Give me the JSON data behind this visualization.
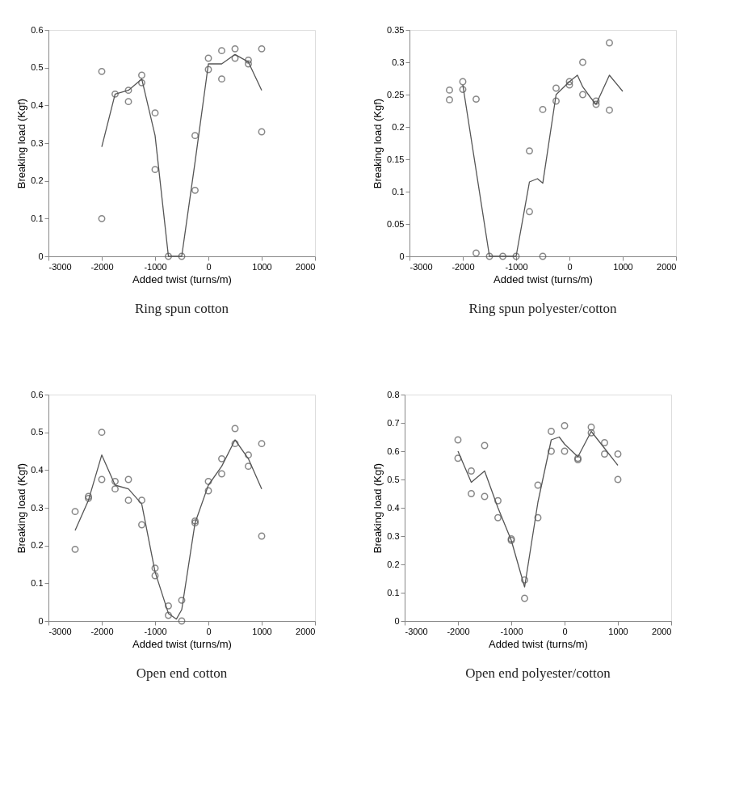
{
  "chart_data": [
    {
      "type": "scatter",
      "title": "Ring spun cotton",
      "xlabel": "Added twist (turns/m)",
      "ylabel": "Breaking load (Kgf)",
      "xlim": [
        -3000,
        2000
      ],
      "xticks": [
        -3000,
        -2000,
        -1000,
        0,
        1000,
        2000
      ],
      "ylim": [
        0,
        0.6
      ],
      "yticks": [
        0,
        0.1,
        0.2,
        0.3,
        0.4,
        0.5,
        0.6
      ],
      "grid": false,
      "series": [
        {
          "marker": "circle",
          "color": "#555555",
          "x": [
            -2000,
            -2000,
            -1750,
            -1500,
            -1500,
            -1250,
            -1250,
            -1000,
            -1000,
            -750,
            -500,
            -250,
            -250,
            0,
            0,
            250,
            250,
            500,
            500,
            750,
            750,
            1000,
            1000
          ],
          "values": [
            0.49,
            0.1,
            0.43,
            0.44,
            0.41,
            0.48,
            0.46,
            0.38,
            0.23,
            0,
            0,
            0.32,
            0.175,
            0.525,
            0.495,
            0.545,
            0.47,
            0.55,
            0.525,
            0.52,
            0.51,
            0.55,
            0.33
          ]
        },
        {
          "type": "line",
          "marker": "none",
          "color": "#555555",
          "x": [
            -2000,
            -1750,
            -1500,
            -1250,
            -1000,
            -750,
            -500,
            -250,
            0,
            250,
            500,
            750,
            1000
          ],
          "values": [
            0.29,
            0.43,
            0.44,
            0.47,
            0.32,
            0,
            0,
            0.25,
            0.51,
            0.51,
            0.535,
            0.515,
            0.44
          ]
        }
      ]
    },
    {
      "type": "scatter",
      "title": "Ring spun polyester/cotton",
      "xlabel": "Added twist (turns/m)",
      "ylabel": "Breaking load (Kgf)",
      "xlim": [
        -3000,
        2000
      ],
      "xticks": [
        -3000,
        -2000,
        -1000,
        0,
        1000,
        2000
      ],
      "ylim": [
        0,
        0.35
      ],
      "yticks": [
        0,
        0.05,
        0.1,
        0.15,
        0.2,
        0.25,
        0.3,
        0.35
      ],
      "grid": false,
      "series": [
        {
          "marker": "circle",
          "color": "#555555",
          "x": [
            -2250,
            -2250,
            -2000,
            -2000,
            -1750,
            -1750,
            -1500,
            -1250,
            -1000,
            -750,
            -750,
            -500,
            -500,
            -250,
            -250,
            0,
            0,
            250,
            250,
            500,
            500,
            750,
            750
          ],
          "values": [
            0.257,
            0.242,
            0.27,
            0.258,
            0.243,
            0.005,
            0,
            0,
            0,
            0.163,
            0.069,
            0.227,
            0,
            0.26,
            0.24,
            0.27,
            0.265,
            0.3,
            0.25,
            0.24,
            0.235,
            0.33,
            0.226
          ]
        },
        {
          "type": "line",
          "marker": "none",
          "color": "#555555",
          "x": [
            -2000,
            -1500,
            -1000,
            -750,
            -600,
            -500,
            -250,
            0,
            150,
            250,
            400,
            500,
            750,
            1000
          ],
          "values": [
            0.265,
            0,
            0,
            0.115,
            0.12,
            0.113,
            0.25,
            0.27,
            0.28,
            0.262,
            0.245,
            0.235,
            0.28,
            0.255
          ]
        }
      ]
    },
    {
      "type": "scatter",
      "title": "Open end cotton",
      "xlabel": "Added twist (turns/m)",
      "ylabel": "Breaking load (Kgf)",
      "xlim": [
        -3000,
        2000
      ],
      "xticks": [
        -3000,
        -2000,
        -1000,
        0,
        1000,
        2000
      ],
      "ylim": [
        0,
        0.6
      ],
      "yticks": [
        0,
        0.1,
        0.2,
        0.3,
        0.4,
        0.5,
        0.6
      ],
      "grid": false,
      "series": [
        {
          "marker": "circle",
          "color": "#555555",
          "x": [
            -2500,
            -2500,
            -2250,
            -2250,
            -2000,
            -2000,
            -1750,
            -1750,
            -1500,
            -1500,
            -1250,
            -1250,
            -1000,
            -1000,
            -750,
            -750,
            -500,
            -500,
            -250,
            -250,
            0,
            0,
            250,
            250,
            500,
            500,
            750,
            750,
            1000,
            1000
          ],
          "values": [
            0.29,
            0.19,
            0.33,
            0.325,
            0.5,
            0.375,
            0.37,
            0.35,
            0.375,
            0.32,
            0.32,
            0.255,
            0.14,
            0.12,
            0.04,
            0.015,
            0.055,
            0,
            0.265,
            0.26,
            0.37,
            0.345,
            0.43,
            0.39,
            0.51,
            0.47,
            0.44,
            0.41,
            0.47,
            0.225
          ]
        },
        {
          "type": "line",
          "marker": "none",
          "color": "#555555",
          "x": [
            -2500,
            -2250,
            -2000,
            -1750,
            -1500,
            -1250,
            -1000,
            -750,
            -600,
            -500,
            -250,
            0,
            250,
            500,
            750,
            1000
          ],
          "values": [
            0.24,
            0.32,
            0.44,
            0.36,
            0.35,
            0.31,
            0.13,
            0.02,
            0.005,
            0.03,
            0.26,
            0.36,
            0.41,
            0.48,
            0.43,
            0.35
          ]
        }
      ]
    },
    {
      "type": "scatter",
      "title": "Open end polyester/cotton",
      "xlabel": "Added twist (turns/m)",
      "ylabel": "Breaking load (Kgf)",
      "xlim": [
        -3000,
        2000
      ],
      "xticks": [
        -3000,
        -2000,
        -1000,
        0,
        1000,
        2000
      ],
      "ylim": [
        0,
        0.8
      ],
      "yticks": [
        0,
        0.1,
        0.2,
        0.3,
        0.4,
        0.5,
        0.6,
        0.7,
        0.8
      ],
      "grid": false,
      "series": [
        {
          "marker": "circle",
          "color": "#555555",
          "x": [
            -2000,
            -2000,
            -1750,
            -1750,
            -1500,
            -1500,
            -1250,
            -1250,
            -1000,
            -1000,
            -750,
            -750,
            -500,
            -500,
            -250,
            -250,
            0,
            0,
            250,
            250,
            500,
            500,
            750,
            750,
            1000,
            1000
          ],
          "values": [
            0.64,
            0.575,
            0.53,
            0.45,
            0.62,
            0.44,
            0.425,
            0.365,
            0.29,
            0.285,
            0.145,
            0.08,
            0.48,
            0.365,
            0.67,
            0.6,
            0.69,
            0.6,
            0.575,
            0.57,
            0.685,
            0.665,
            0.63,
            0.59,
            0.59,
            0.5
          ]
        },
        {
          "type": "line",
          "marker": "none",
          "color": "#555555",
          "x": [
            -2000,
            -1750,
            -1500,
            -1250,
            -1000,
            -750,
            -500,
            -250,
            -100,
            0,
            250,
            500,
            750,
            1000
          ],
          "values": [
            0.6,
            0.49,
            0.53,
            0.4,
            0.285,
            0.12,
            0.42,
            0.64,
            0.65,
            0.625,
            0.58,
            0.67,
            0.61,
            0.55
          ]
        }
      ]
    }
  ]
}
